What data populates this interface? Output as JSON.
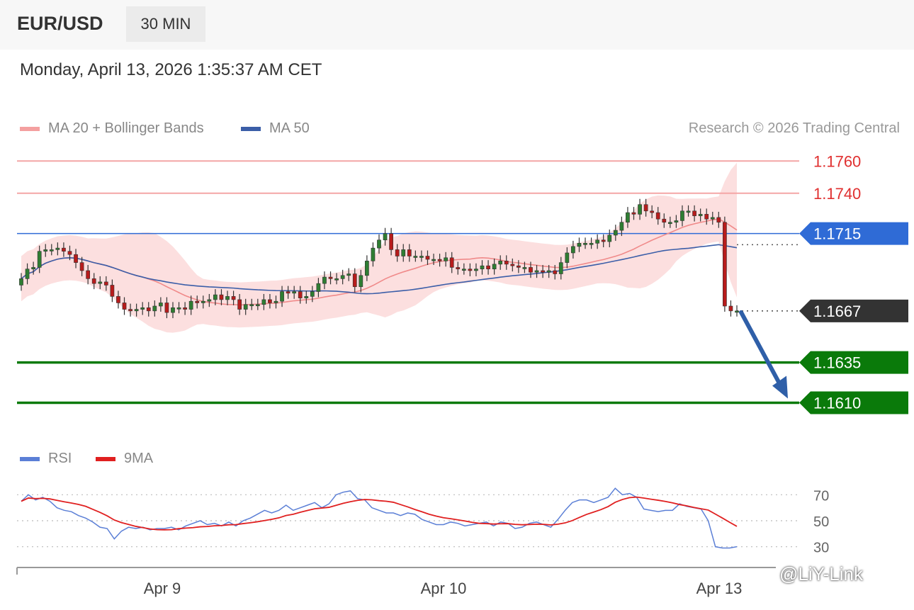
{
  "header": {
    "symbol": "EUR/USD",
    "timeframe": "30 MIN",
    "datetime": "Monday, April 13, 2026 1:35:37 AM CET"
  },
  "legend": {
    "ma20_label": "MA 20 + Bollinger Bands",
    "ma20_color": "#f08a8a",
    "ma50_label": "MA 50",
    "ma50_color": "#3b5ea8",
    "copyright": "Research © 2026 Trading Central",
    "rsi_label": "RSI",
    "rsi_color": "#5b7fd6",
    "rsi_ma_label": "9MA",
    "rsi_ma_color": "#e02020"
  },
  "watermark": "@LiY-Link",
  "chart_data": {
    "type": "candlestick",
    "ylim": [
      1.159,
      1.1772
    ],
    "x_ticks": [
      "Apr 9",
      "Apr 10",
      "Apr 13"
    ],
    "levels": [
      {
        "label": "1.1760",
        "value": 1.176,
        "kind": "resistance",
        "color": "#e03030"
      },
      {
        "label": "1.1740",
        "value": 1.174,
        "kind": "resistance",
        "color": "#e03030"
      },
      {
        "label": "1.1715",
        "value": 1.1715,
        "kind": "pivot",
        "color": "#2f6bd6"
      },
      {
        "label": "1.1667",
        "value": 1.1667,
        "kind": "last",
        "color": "#333333"
      },
      {
        "label": "1.1635",
        "value": 1.1635,
        "kind": "support",
        "color": "#0a7a0a"
      },
      {
        "label": "1.1610",
        "value": 1.161,
        "kind": "support",
        "color": "#0a7a0a"
      }
    ],
    "closes": [
      1.1687,
      1.1693,
      1.1694,
      1.1704,
      1.1705,
      1.1705,
      1.1706,
      1.1704,
      1.1702,
      1.1697,
      1.1692,
      1.1687,
      1.1684,
      1.1685,
      1.1683,
      1.1676,
      1.1672,
      1.1668,
      1.1667,
      1.1668,
      1.1669,
      1.1667,
      1.167,
      1.1672,
      1.1666,
      1.1669,
      1.1669,
      1.1668,
      1.1673,
      1.1672,
      1.1673,
      1.1674,
      1.1677,
      1.1674,
      1.1676,
      1.1674,
      1.1668,
      1.1671,
      1.1671,
      1.1671,
      1.1674,
      1.1672,
      1.1673,
      1.1679,
      1.1678,
      1.1679,
      1.1675,
      1.1676,
      1.1679,
      1.1684,
      1.1688,
      1.1687,
      1.1687,
      1.1689,
      1.169,
      1.1682,
      1.1689,
      1.1698,
      1.1706,
      1.1711,
      1.1715,
      1.1705,
      1.1701,
      1.1705,
      1.1701,
      1.1701,
      1.1701,
      1.1699,
      1.1699,
      1.1698,
      1.17,
      1.1694,
      1.1693,
      1.1693,
      1.1692,
      1.1693,
      1.1695,
      1.1693,
      1.1696,
      1.1698,
      1.1696,
      1.1695,
      1.1694,
      1.1694,
      1.1691,
      1.1692,
      1.1691,
      1.1692,
      1.169,
      1.1697,
      1.1703,
      1.1707,
      1.1709,
      1.1709,
      1.1709,
      1.1711,
      1.171,
      1.1714,
      1.1717,
      1.1722,
      1.1728,
      1.1727,
      1.1733,
      1.1729,
      1.1728,
      1.1724,
      1.1722,
      1.1722,
      1.1723,
      1.1729,
      1.1729,
      1.1726,
      1.1727,
      1.1724,
      1.1725,
      1.1722,
      1.167,
      1.1667,
      1.1667
    ],
    "rsi": {
      "levels": [
        70,
        50,
        30
      ],
      "rsi_values": [
        65,
        70,
        66,
        68,
        65,
        60,
        58,
        57,
        54,
        52,
        49,
        45,
        44,
        36,
        42,
        45,
        44,
        45,
        43,
        44,
        44,
        45,
        43,
        46,
        48,
        50,
        47,
        48,
        46,
        49,
        46,
        50,
        52,
        55,
        58,
        56,
        58,
        62,
        58,
        60,
        62,
        64,
        60,
        63,
        70,
        72,
        73,
        67,
        66,
        60,
        58,
        56,
        56,
        54,
        56,
        55,
        51,
        49,
        47,
        47,
        49,
        48,
        46,
        47,
        48,
        49,
        46,
        49,
        48,
        44,
        45,
        48,
        49,
        47,
        45,
        51,
        58,
        64,
        66,
        66,
        64,
        66,
        68,
        75,
        70,
        71,
        68,
        59,
        58,
        57,
        58,
        58,
        63,
        61,
        60,
        59,
        50,
        30,
        29,
        29,
        30
      ]
    }
  }
}
